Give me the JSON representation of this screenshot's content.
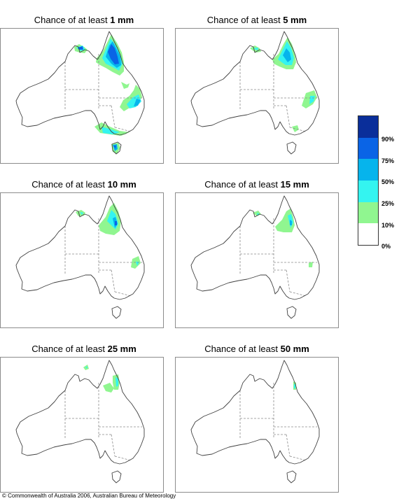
{
  "panels": [
    {
      "title_prefix": "Chance of at least",
      "amount": "1 mm"
    },
    {
      "title_prefix": "Chance of at least",
      "amount": "5 mm"
    },
    {
      "title_prefix": "Chance of at least",
      "amount": "10 mm"
    },
    {
      "title_prefix": "Chance of at least",
      "amount": "15 mm"
    },
    {
      "title_prefix": "Chance of at least",
      "amount": "25 mm"
    },
    {
      "title_prefix": "Chance of at least",
      "amount": "50 mm"
    }
  ],
  "legend": {
    "bands": [
      {
        "color": "#0a2e9a"
      },
      {
        "color": "#0a64e6"
      },
      {
        "color": "#06b4ec"
      },
      {
        "color": "#34f4f0"
      },
      {
        "color": "#90f690"
      },
      {
        "color": "#ffffff"
      }
    ],
    "labels": [
      "90%",
      "75%",
      "50%",
      "25%",
      "10%",
      "0%"
    ]
  },
  "copyright": "© Commonwealth of Australia 2006, Australian Bureau of Meteorology"
}
